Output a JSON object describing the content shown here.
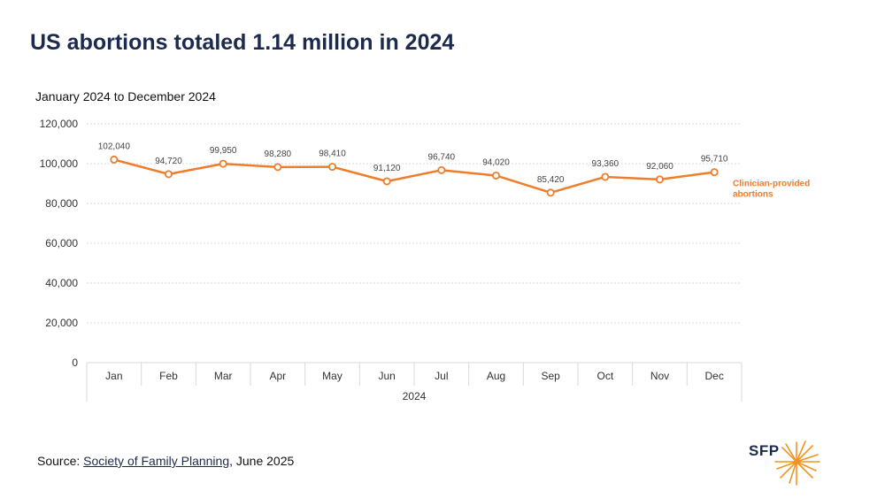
{
  "header": {
    "title": "US abortions totaled 1.14 million in 2024",
    "subtitle": "January 2024 to December 2024"
  },
  "colors": {
    "series": "#ee7d2c",
    "title": "#1c2a4d",
    "grid": "#cccccc"
  },
  "chart_data": {
    "type": "line",
    "categories": [
      "Jan",
      "Feb",
      "Mar",
      "Apr",
      "May",
      "Jun",
      "Jul",
      "Aug",
      "Sep",
      "Oct",
      "Nov",
      "Dec"
    ],
    "x_group_label": "2024",
    "series": [
      {
        "name": "Clinician-provided abortions",
        "name_lines": [
          "Clinician-provided",
          "abortions"
        ],
        "values": [
          102040,
          94720,
          99950,
          98280,
          98410,
          91120,
          96740,
          94020,
          85420,
          93360,
          92060,
          95710
        ],
        "labels": [
          "102,040",
          "94,720",
          "99,950",
          "98,280",
          "98,410",
          "91,120",
          "96,740",
          "94,020",
          "85,420",
          "93,360",
          "92,060",
          "95,710"
        ]
      }
    ],
    "y_ticks": [
      0,
      20000,
      40000,
      60000,
      80000,
      100000,
      120000
    ],
    "y_tick_labels": [
      "0",
      "20,000",
      "40,000",
      "60,000",
      "80,000",
      "100,000",
      "120,000"
    ],
    "ylim": [
      0,
      120000
    ],
    "grid": true,
    "legend": "right of last point"
  },
  "footer": {
    "source_prefix": "Source: ",
    "source_link": "Society of Family Planning",
    "source_suffix": ", June 2025",
    "logo_text": "SFP"
  }
}
